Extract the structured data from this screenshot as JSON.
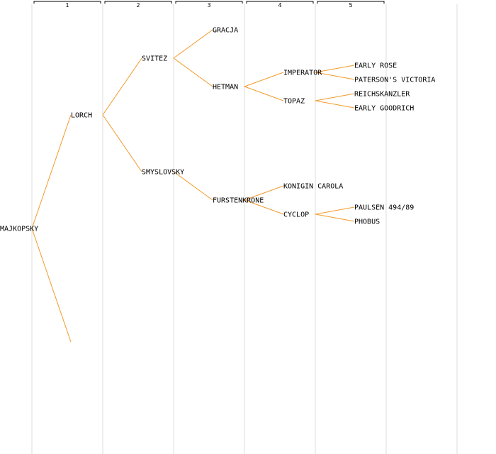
{
  "colors": {
    "background": "#ffffff",
    "edge": "#f39a2a",
    "column_divider": "#e8e8e8",
    "bracket": "#000000",
    "text": "#000000"
  },
  "generations": [
    "1",
    "2",
    "3",
    "4",
    "5"
  ],
  "pedigree": {
    "name": "MAJKOPSKY",
    "children": [
      {
        "name": "LORCH",
        "children": [
          {
            "name": "SVITEZ",
            "children": [
              {
                "name": "GRACJA"
              },
              {
                "name": "HETMAN",
                "children": [
                  {
                    "name": "IMPERATOR",
                    "children": [
                      {
                        "name": "EARLY ROSE"
                      },
                      {
                        "name": "PATERSON'S VICTORIA"
                      }
                    ]
                  },
                  {
                    "name": "TOPAZ",
                    "children": [
                      {
                        "name": "REICHSKANZLER"
                      },
                      {
                        "name": "EARLY GOODRICH"
                      }
                    ]
                  }
                ]
              }
            ]
          },
          {
            "name": "SMYSLOVSKY",
            "children": [
              {
                "name": "FURSTENKRONE",
                "children": [
                  {
                    "name": "KONIGIN CAROLA"
                  },
                  {
                    "name": "CYCLOP",
                    "children": [
                      {
                        "name": "PAULSEN 494/89"
                      },
                      {
                        "name": "PHOBUS"
                      }
                    ]
                  }
                ]
              }
            ]
          }
        ]
      },
      {
        "name": ""
      }
    ]
  }
}
